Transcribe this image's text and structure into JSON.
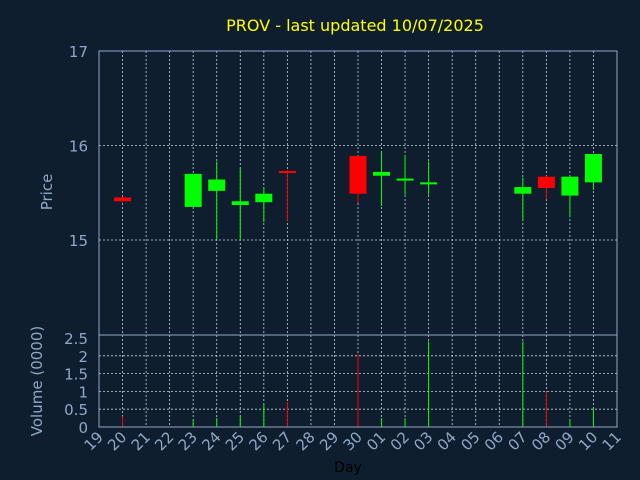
{
  "colors": {
    "background": "#0f1e2e",
    "frame": "#90a8c8",
    "grid": "#c8d0d8",
    "title": "#ffff00",
    "axis_text": "#90a8c8",
    "xlabel": "#000000",
    "up": "#00ff00",
    "down": "#ff0000"
  },
  "chart_data": {
    "type": "candlestick",
    "title": "PROV - last updated 10/07/2025",
    "xlabel": "Day",
    "price_panel": {
      "ylabel": "Price",
      "ylim": [
        15,
        17
      ],
      "yticks": [
        "15",
        "16",
        "17"
      ],
      "grid": true
    },
    "volume_panel": {
      "ylabel": "Volume (0000)",
      "ylim": [
        0,
        2.5
      ],
      "yticks": [
        "0",
        "0.5",
        "1",
        "1.5",
        "2",
        "2.5"
      ],
      "grid": true
    },
    "x_ticks": [
      "19",
      "20",
      "21",
      "22",
      "23",
      "24",
      "25",
      "26",
      "27",
      "28",
      "29",
      "30",
      "01",
      "02",
      "03",
      "04",
      "05",
      "06",
      "07",
      "08",
      "09",
      "10",
      "11"
    ],
    "candles": [
      {
        "day": "20",
        "open": 15.45,
        "high": 15.46,
        "low": 15.4,
        "close": 15.41,
        "volume": 0.3
      },
      {
        "day": "23",
        "open": 15.35,
        "high": 15.7,
        "low": 15.35,
        "close": 15.7,
        "volume": 0.2
      },
      {
        "day": "24",
        "open": 15.52,
        "high": 15.83,
        "low": 15.01,
        "close": 15.64,
        "volume": 0.25
      },
      {
        "day": "25",
        "open": 15.37,
        "high": 15.76,
        "low": 14.99,
        "close": 15.41,
        "volume": 0.3
      },
      {
        "day": "26",
        "open": 15.4,
        "high": 15.55,
        "low": 15.19,
        "close": 15.49,
        "volume": 0.65
      },
      {
        "day": "27",
        "open": 15.73,
        "high": 15.74,
        "low": 15.2,
        "close": 15.71,
        "volume": 0.7
      },
      {
        "day": "30",
        "open": 15.89,
        "high": 15.89,
        "low": 15.39,
        "close": 15.49,
        "volume": 2.05
      },
      {
        "day": "01",
        "open": 15.68,
        "high": 15.93,
        "low": 15.36,
        "close": 15.72,
        "volume": 0.25
      },
      {
        "day": "02",
        "open": 15.63,
        "high": 15.9,
        "low": 15.48,
        "close": 15.65,
        "volume": 0.25
      },
      {
        "day": "03",
        "open": 15.59,
        "high": 15.83,
        "low": 15.48,
        "close": 15.61,
        "volume": 2.4
      },
      {
        "day": "07",
        "open": 15.49,
        "high": 15.66,
        "low": 15.2,
        "close": 15.56,
        "volume": 2.4
      },
      {
        "day": "08",
        "open": 15.67,
        "high": 15.68,
        "low": 15.43,
        "close": 15.55,
        "volume": 1.0
      },
      {
        "day": "09",
        "open": 15.47,
        "high": 15.68,
        "low": 15.24,
        "close": 15.67,
        "volume": 0.2
      },
      {
        "day": "10",
        "open": 15.61,
        "high": 15.91,
        "low": 15.53,
        "close": 15.91,
        "volume": 0.5
      }
    ]
  }
}
